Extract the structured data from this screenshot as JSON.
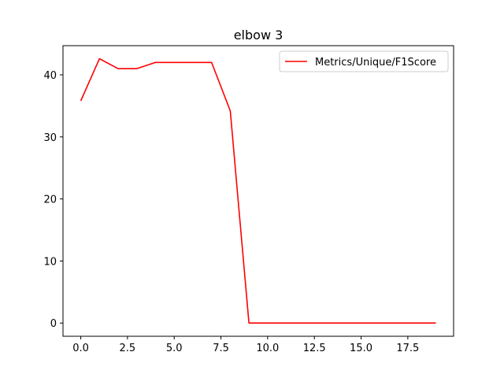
{
  "chart_data": {
    "type": "line",
    "title": "elbow 3",
    "xlabel": "",
    "ylabel": "",
    "xlim": [
      -0.95,
      19.95
    ],
    "ylim": [
      -2.13,
      44.7
    ],
    "x_ticks": [
      0.0,
      2.5,
      5.0,
      7.5,
      10.0,
      12.5,
      15.0,
      17.5
    ],
    "x_tick_labels": [
      "0.0",
      "2.5",
      "5.0",
      "7.5",
      "10.0",
      "12.5",
      "15.0",
      "17.5"
    ],
    "y_ticks": [
      0,
      10,
      20,
      30,
      40
    ],
    "y_tick_labels": [
      "0",
      "10",
      "20",
      "30",
      "40"
    ],
    "grid": false,
    "legend_position": "top-right",
    "series": [
      {
        "name": "Metrics/Unique/F1Score",
        "color": "#ff0000",
        "x": [
          0,
          1,
          2,
          3,
          4,
          5,
          6,
          7,
          8,
          9,
          10,
          11,
          12,
          13,
          14,
          15,
          16,
          17,
          18,
          19
        ],
        "values": [
          35.8,
          42.6,
          41.0,
          41.0,
          42.0,
          42.0,
          42.0,
          42.0,
          34.2,
          0,
          0,
          0,
          0,
          0,
          0,
          0,
          0,
          0,
          0,
          0
        ]
      }
    ]
  }
}
